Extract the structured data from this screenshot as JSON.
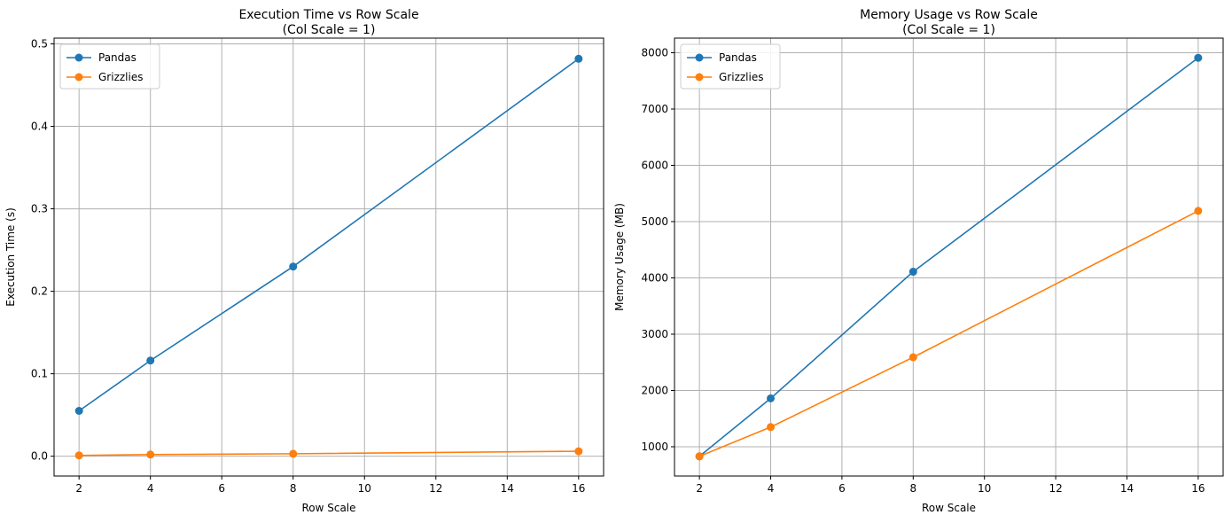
{
  "chart_data": [
    {
      "type": "line",
      "title": "Execution Time vs Row Scale",
      "subtitle": "(Col Scale = 1)",
      "xlabel": "Row Scale",
      "ylabel": "Execution Time (s)",
      "xlim": [
        1.3,
        16.7
      ],
      "ylim": [
        -0.024,
        0.507
      ],
      "xticks": [
        2,
        4,
        6,
        8,
        10,
        12,
        14,
        16
      ],
      "xtick_labels": [
        "2",
        "4",
        "6",
        "8",
        "10",
        "12",
        "14",
        "16"
      ],
      "yticks": [
        0.0,
        0.1,
        0.2,
        0.3,
        0.4,
        0.5
      ],
      "ytick_labels": [
        "0.0",
        "0.1",
        "0.2",
        "0.3",
        "0.4",
        "0.5"
      ],
      "grid": true,
      "legend_position": "top-left",
      "x": [
        2,
        4,
        8,
        16
      ],
      "series": [
        {
          "name": "Pandas",
          "color": "#1f77b4",
          "values": [
            0.055,
            0.116,
            0.23,
            0.482
          ]
        },
        {
          "name": "Grizzlies",
          "color": "#ff7f0e",
          "values": [
            0.001,
            0.002,
            0.003,
            0.006
          ]
        }
      ]
    },
    {
      "type": "line",
      "title": "Memory Usage vs Row Scale",
      "subtitle": "(Col Scale = 1)",
      "xlabel": "Row Scale",
      "ylabel": "Memory Usage (MB)",
      "xlim": [
        1.3,
        16.7
      ],
      "ylim": [
        480,
        8260
      ],
      "xticks": [
        2,
        4,
        6,
        8,
        10,
        12,
        14,
        16
      ],
      "xtick_labels": [
        "2",
        "4",
        "6",
        "8",
        "10",
        "12",
        "14",
        "16"
      ],
      "yticks": [
        1000,
        2000,
        3000,
        4000,
        5000,
        6000,
        7000,
        8000
      ],
      "ytick_labels": [
        "1000",
        "2000",
        "3000",
        "4000",
        "5000",
        "6000",
        "7000",
        "8000"
      ],
      "grid": true,
      "legend_position": "top-left",
      "x": [
        2,
        4,
        8,
        16
      ],
      "series": [
        {
          "name": "Pandas",
          "color": "#1f77b4",
          "values": [
            830,
            1860,
            4110,
            7910
          ]
        },
        {
          "name": "Grizzlies",
          "color": "#ff7f0e",
          "values": [
            830,
            1350,
            2590,
            5190
          ]
        }
      ]
    }
  ]
}
